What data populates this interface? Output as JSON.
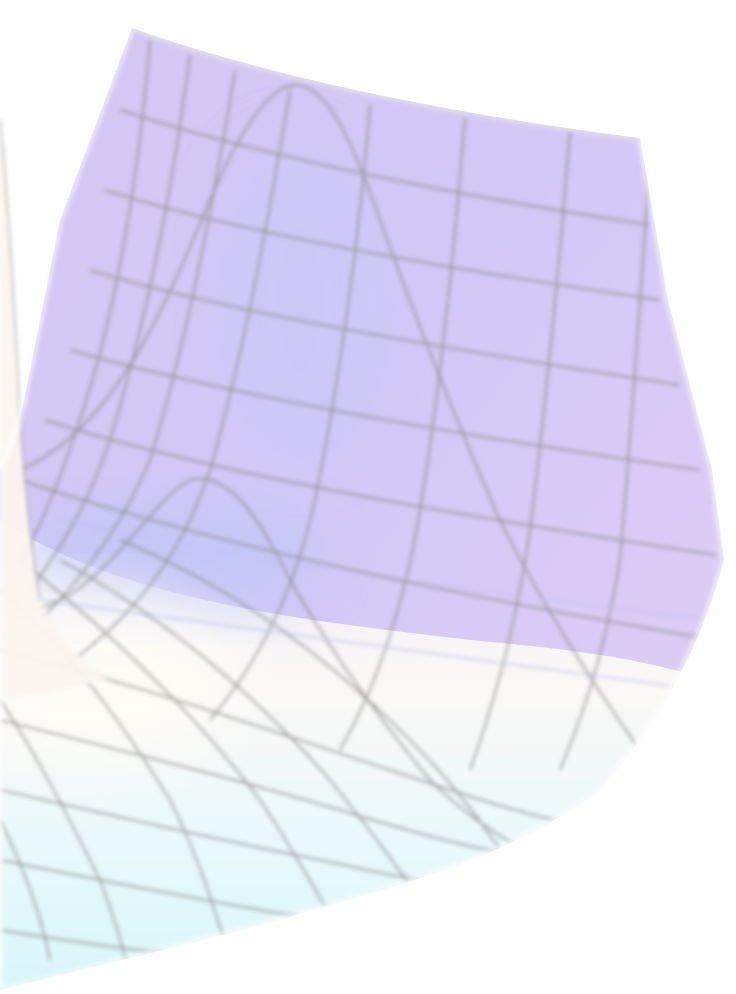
{
  "surface": {
    "description_hidden": "",
    "colors": {
      "top": "#d9c6f3",
      "mid": "#cfc9f6",
      "valley": "#fbf8f3",
      "bottom": "#d9f6fb",
      "mesh": "#8a8a8a",
      "edge_glow": "#a9b6f0"
    }
  }
}
